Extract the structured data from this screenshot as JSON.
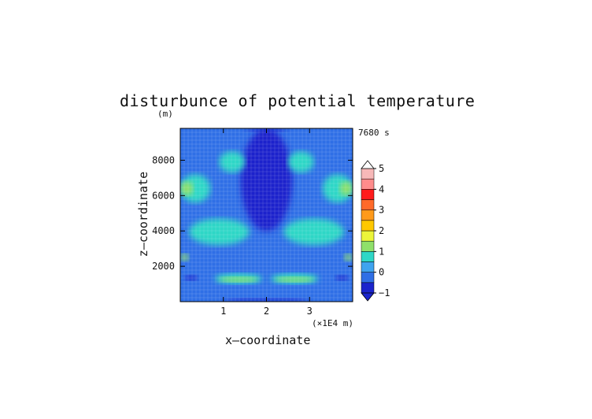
{
  "chart_data": {
    "type": "heatmap",
    "title": "disturbunce of potential temperature",
    "time_label": "7680 s",
    "xlabel": "x—coordinate",
    "ylabel": "z—coordinate",
    "x_unit": "(×1E4 m)",
    "y_unit": "(m)",
    "xlim": [
      0,
      4
    ],
    "ylim": [
      0,
      9800
    ],
    "x_ticks": [
      {
        "v": 1,
        "label": "1"
      },
      {
        "v": 2,
        "label": "2"
      },
      {
        "v": 3,
        "label": "3"
      }
    ],
    "y_ticks": [
      {
        "v": 2000,
        "label": "2000"
      },
      {
        "v": 4000,
        "label": "4000"
      },
      {
        "v": 6000,
        "label": "6000"
      },
      {
        "v": 8000,
        "label": "8000"
      }
    ],
    "colorbar": {
      "levels": [
        -1,
        -0.5,
        0,
        0.5,
        1,
        1.5,
        2,
        2.5,
        3,
        3.5,
        4,
        4.5,
        5
      ],
      "tick_labels": [
        "-1",
        "0",
        "1",
        "2",
        "3",
        "4",
        "5"
      ],
      "colors": [
        "#1a24cc",
        "#2f6fe6",
        "#3fa3ef",
        "#2ed7c6",
        "#8fe06a",
        "#ecf53a",
        "#ffc800",
        "#ff9a1a",
        "#ff6a2a",
        "#ff1c1c",
        "#ff8c8c",
        "#f7b8b8"
      ],
      "extend": "both"
    },
    "regions": [
      {
        "x": [
          0.0,
          4.0
        ],
        "z": [
          0,
          9800
        ],
        "value": -0.3
      },
      {
        "x": [
          1.4,
          2.6
        ],
        "z": [
          4000,
          9800
        ],
        "value": -0.7
      },
      {
        "x": [
          0.1,
          0.4
        ],
        "z": [
          1200,
          1500
        ],
        "value": -0.7
      },
      {
        "x": [
          3.6,
          3.9
        ],
        "z": [
          1200,
          1500
        ],
        "value": -0.7
      },
      {
        "x": [
          0.0,
          0.7
        ],
        "z": [
          5600,
          7200
        ],
        "value": 0.6
      },
      {
        "x": [
          3.3,
          4.0
        ],
        "z": [
          5600,
          7200
        ],
        "value": 0.6
      },
      {
        "x": [
          0.9,
          1.5
        ],
        "z": [
          7300,
          8500
        ],
        "value": 0.6
      },
      {
        "x": [
          2.5,
          3.1
        ],
        "z": [
          7300,
          8500
        ],
        "value": 0.6
      },
      {
        "x": [
          0.2,
          1.6
        ],
        "z": [
          3200,
          4700
        ],
        "value": 0.6
      },
      {
        "x": [
          2.4,
          3.8
        ],
        "z": [
          3200,
          4700
        ],
        "value": 0.6
      },
      {
        "x": [
          0.8,
          1.9
        ],
        "z": [
          1000,
          1600
        ],
        "value": 0.6
      },
      {
        "x": [
          2.1,
          3.2
        ],
        "z": [
          1000,
          1600
        ],
        "value": 0.6
      },
      {
        "x": [
          0.0,
          0.3
        ],
        "z": [
          6000,
          6800
        ],
        "value": 1.2
      },
      {
        "x": [
          3.7,
          4.0
        ],
        "z": [
          6000,
          6800
        ],
        "value": 1.2
      },
      {
        "x": [
          0.9,
          1.8
        ],
        "z": [
          1100,
          1400
        ],
        "value": 1.2
      },
      {
        "x": [
          2.2,
          3.1
        ],
        "z": [
          1100,
          1400
        ],
        "value": 1.2
      },
      {
        "x": [
          0.0,
          0.2
        ],
        "z": [
          2300,
          2700
        ],
        "value": 1.2
      },
      {
        "x": [
          3.8,
          4.0
        ],
        "z": [
          2300,
          2700
        ],
        "value": 1.2
      },
      {
        "x": [
          1.0,
          3.0
        ],
        "z": [
          0,
          200
        ],
        "value": -1.0
      },
      {
        "x": [
          1.5,
          2.5
        ],
        "z": [
          9600,
          9800
        ],
        "value": -1.0
      }
    ]
  }
}
